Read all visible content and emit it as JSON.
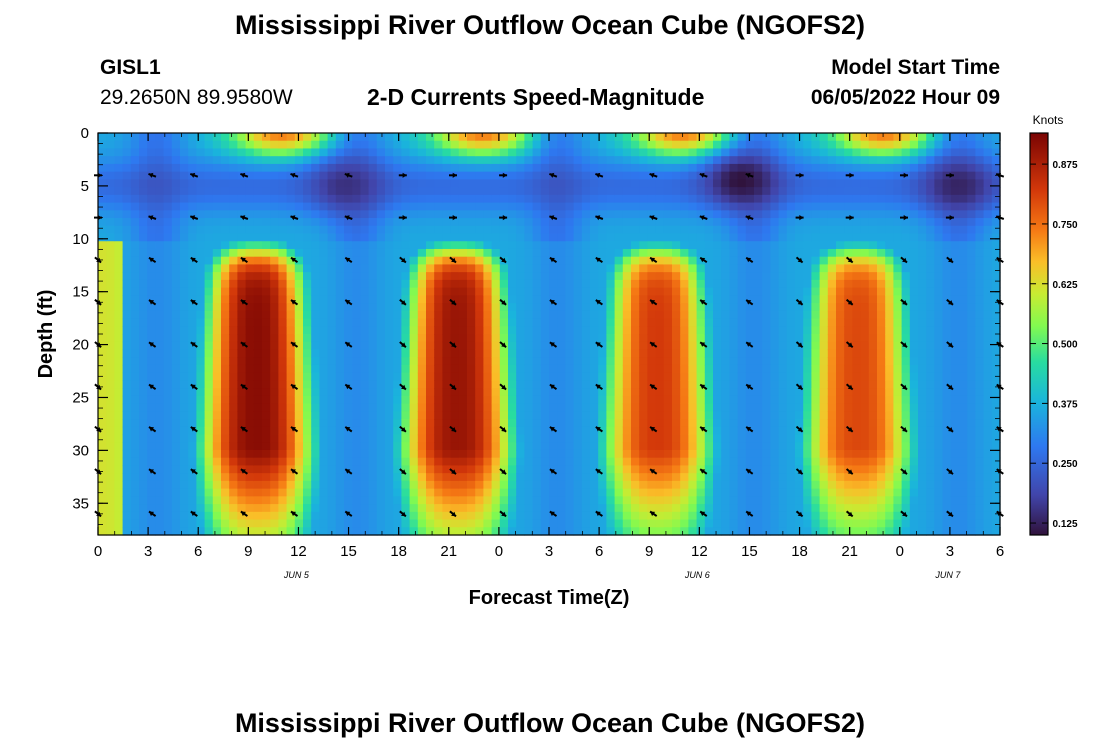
{
  "page": {
    "title": "Mississippi River Outflow Ocean Cube (NGOFS2)",
    "bottom_title": "Mississippi River Outflow Ocean Cube (NGOFS2)",
    "station_id": "GISL1",
    "station_coords": "29.2650N  89.9580W",
    "subtitle": "2-D Currents Speed-Magnitude",
    "model_start_label": "Model Start Time",
    "model_start_value": "06/05/2022 Hour 09"
  },
  "chart_data": {
    "type": "heatmap",
    "title": "2-D Currents Speed-Magnitude",
    "xlabel": "Forecast Time(Z)",
    "ylabel": "Depth (ft)",
    "x_range_hours": [
      0,
      54
    ],
    "y_range_ft": [
      0,
      38
    ],
    "x_tick_labels": [
      "0",
      "3",
      "6",
      "9",
      "12",
      "15",
      "18",
      "21",
      "0",
      "3",
      "6",
      "9",
      "12",
      "15",
      "18",
      "21",
      "0",
      "3",
      "6"
    ],
    "y_tick_labels": [
      "0",
      "5",
      "10",
      "15",
      "20",
      "25",
      "30",
      "35"
    ],
    "date_labels": [
      {
        "label": "JUN 5",
        "hour": 12
      },
      {
        "label": "JUN 6",
        "hour": 36
      },
      {
        "label": "JUN 7",
        "hour": 51
      }
    ],
    "colorbar": {
      "unit": "Knots",
      "min": 0.1,
      "max": 0.94,
      "ticks": [
        "0.125",
        "0.250",
        "0.375",
        "0.500",
        "0.625",
        "0.750",
        "0.875"
      ]
    },
    "speed_peaks": [
      {
        "hour": 9.5,
        "depth_ft": 18,
        "speed": 0.92
      },
      {
        "hour": 21.5,
        "depth_ft": 17,
        "speed": 0.9
      },
      {
        "hour": 33.5,
        "depth_ft": 17,
        "speed": 0.82
      },
      {
        "hour": 45.5,
        "depth_ft": 17,
        "speed": 0.8
      }
    ],
    "speed_minima": [
      {
        "hour": 14.8,
        "depth_ft": 5,
        "speed": 0.15
      },
      {
        "hour": 38.5,
        "depth_ft": 4.5,
        "speed": 0.1
      },
      {
        "hour": 51.5,
        "depth_ft": 5,
        "speed": 0.13
      }
    ],
    "vector_hours": [
      0,
      3.25,
      5.75,
      8.75,
      11.75,
      15,
      18.25,
      21.25,
      24.25,
      27.25,
      30,
      33.25,
      36.25,
      39,
      42,
      45,
      48.25,
      51,
      54
    ],
    "vector_depths_ft": [
      4,
      8,
      12,
      16,
      20,
      24,
      28,
      32,
      36
    ]
  }
}
